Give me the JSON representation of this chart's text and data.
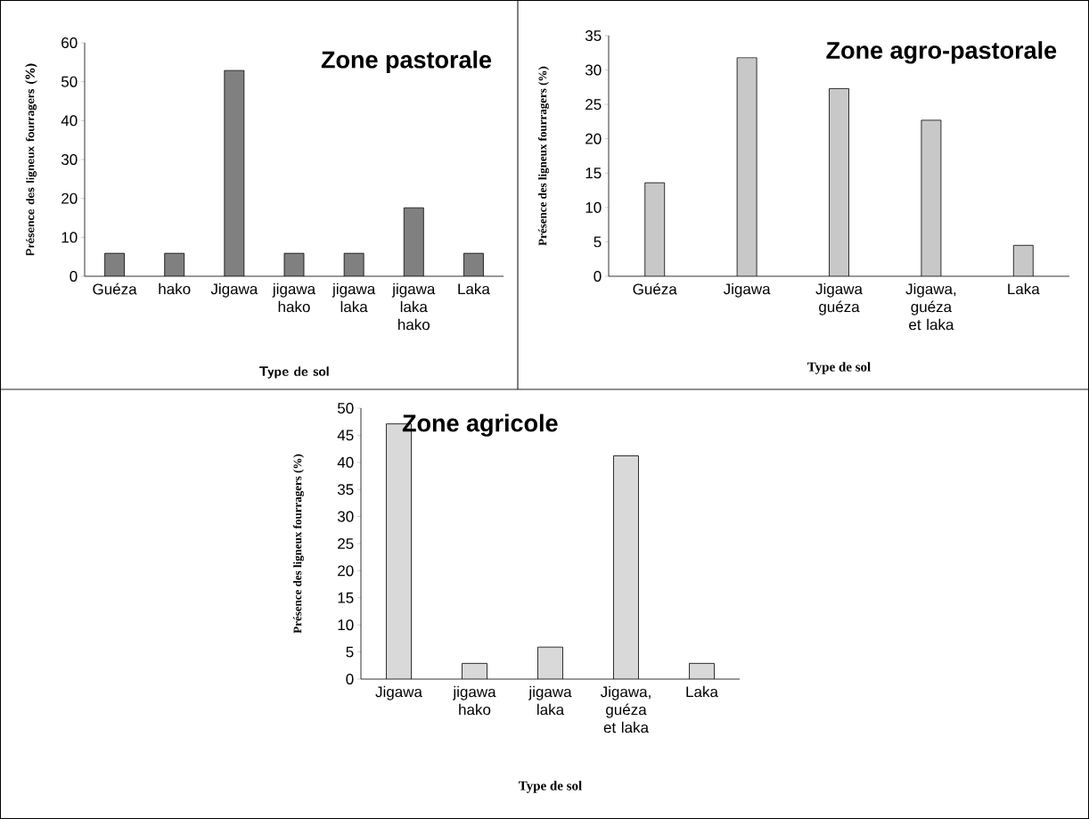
{
  "chart_data": [
    {
      "type": "bar",
      "title": "Zone pastorale",
      "xlabel": "Type de sol",
      "ylabel": "Présence des ligneux fourragers (%)",
      "categories": [
        "Guéza",
        "hako",
        "Jigawa",
        "jigawa hako",
        "jigawa laka",
        "jigawa laka hako",
        "Laka"
      ],
      "values": [
        5.9,
        5.9,
        52.9,
        5.9,
        5.9,
        17.6,
        5.9
      ],
      "color": "#808080",
      "ylim": [
        0,
        60
      ],
      "yticks": [
        0,
        10,
        20,
        30,
        40,
        50,
        60
      ]
    },
    {
      "type": "bar",
      "title": "Zone agro-pastorale",
      "xlabel": "Type de sol",
      "ylabel": "Présence des ligneux fourragers (%)",
      "categories": [
        "Guéza",
        "Jigawa",
        "Jigawa guéza",
        "Jigawa, guéza et laka",
        "Laka"
      ],
      "values": [
        13.6,
        31.8,
        27.3,
        22.7,
        4.5
      ],
      "color": "#c8c8c8",
      "ylim": [
        0,
        35
      ],
      "yticks": [
        0,
        5,
        10,
        15,
        20,
        25,
        30,
        35
      ]
    },
    {
      "type": "bar",
      "title": "Zone agricole",
      "xlabel": "Type de sol",
      "ylabel": "Présence des ligneux fourragers (%)",
      "categories": [
        "Jigawa",
        "jigawa hako",
        "jigawa laka",
        "Jigawa, guéza et laka",
        "Laka"
      ],
      "values": [
        47.1,
        2.9,
        5.9,
        41.2,
        2.9
      ],
      "color": "#d9d9d9",
      "ylim": [
        0,
        50
      ],
      "yticks": [
        0,
        5,
        10,
        15,
        20,
        25,
        30,
        35,
        40,
        45,
        50
      ]
    }
  ]
}
